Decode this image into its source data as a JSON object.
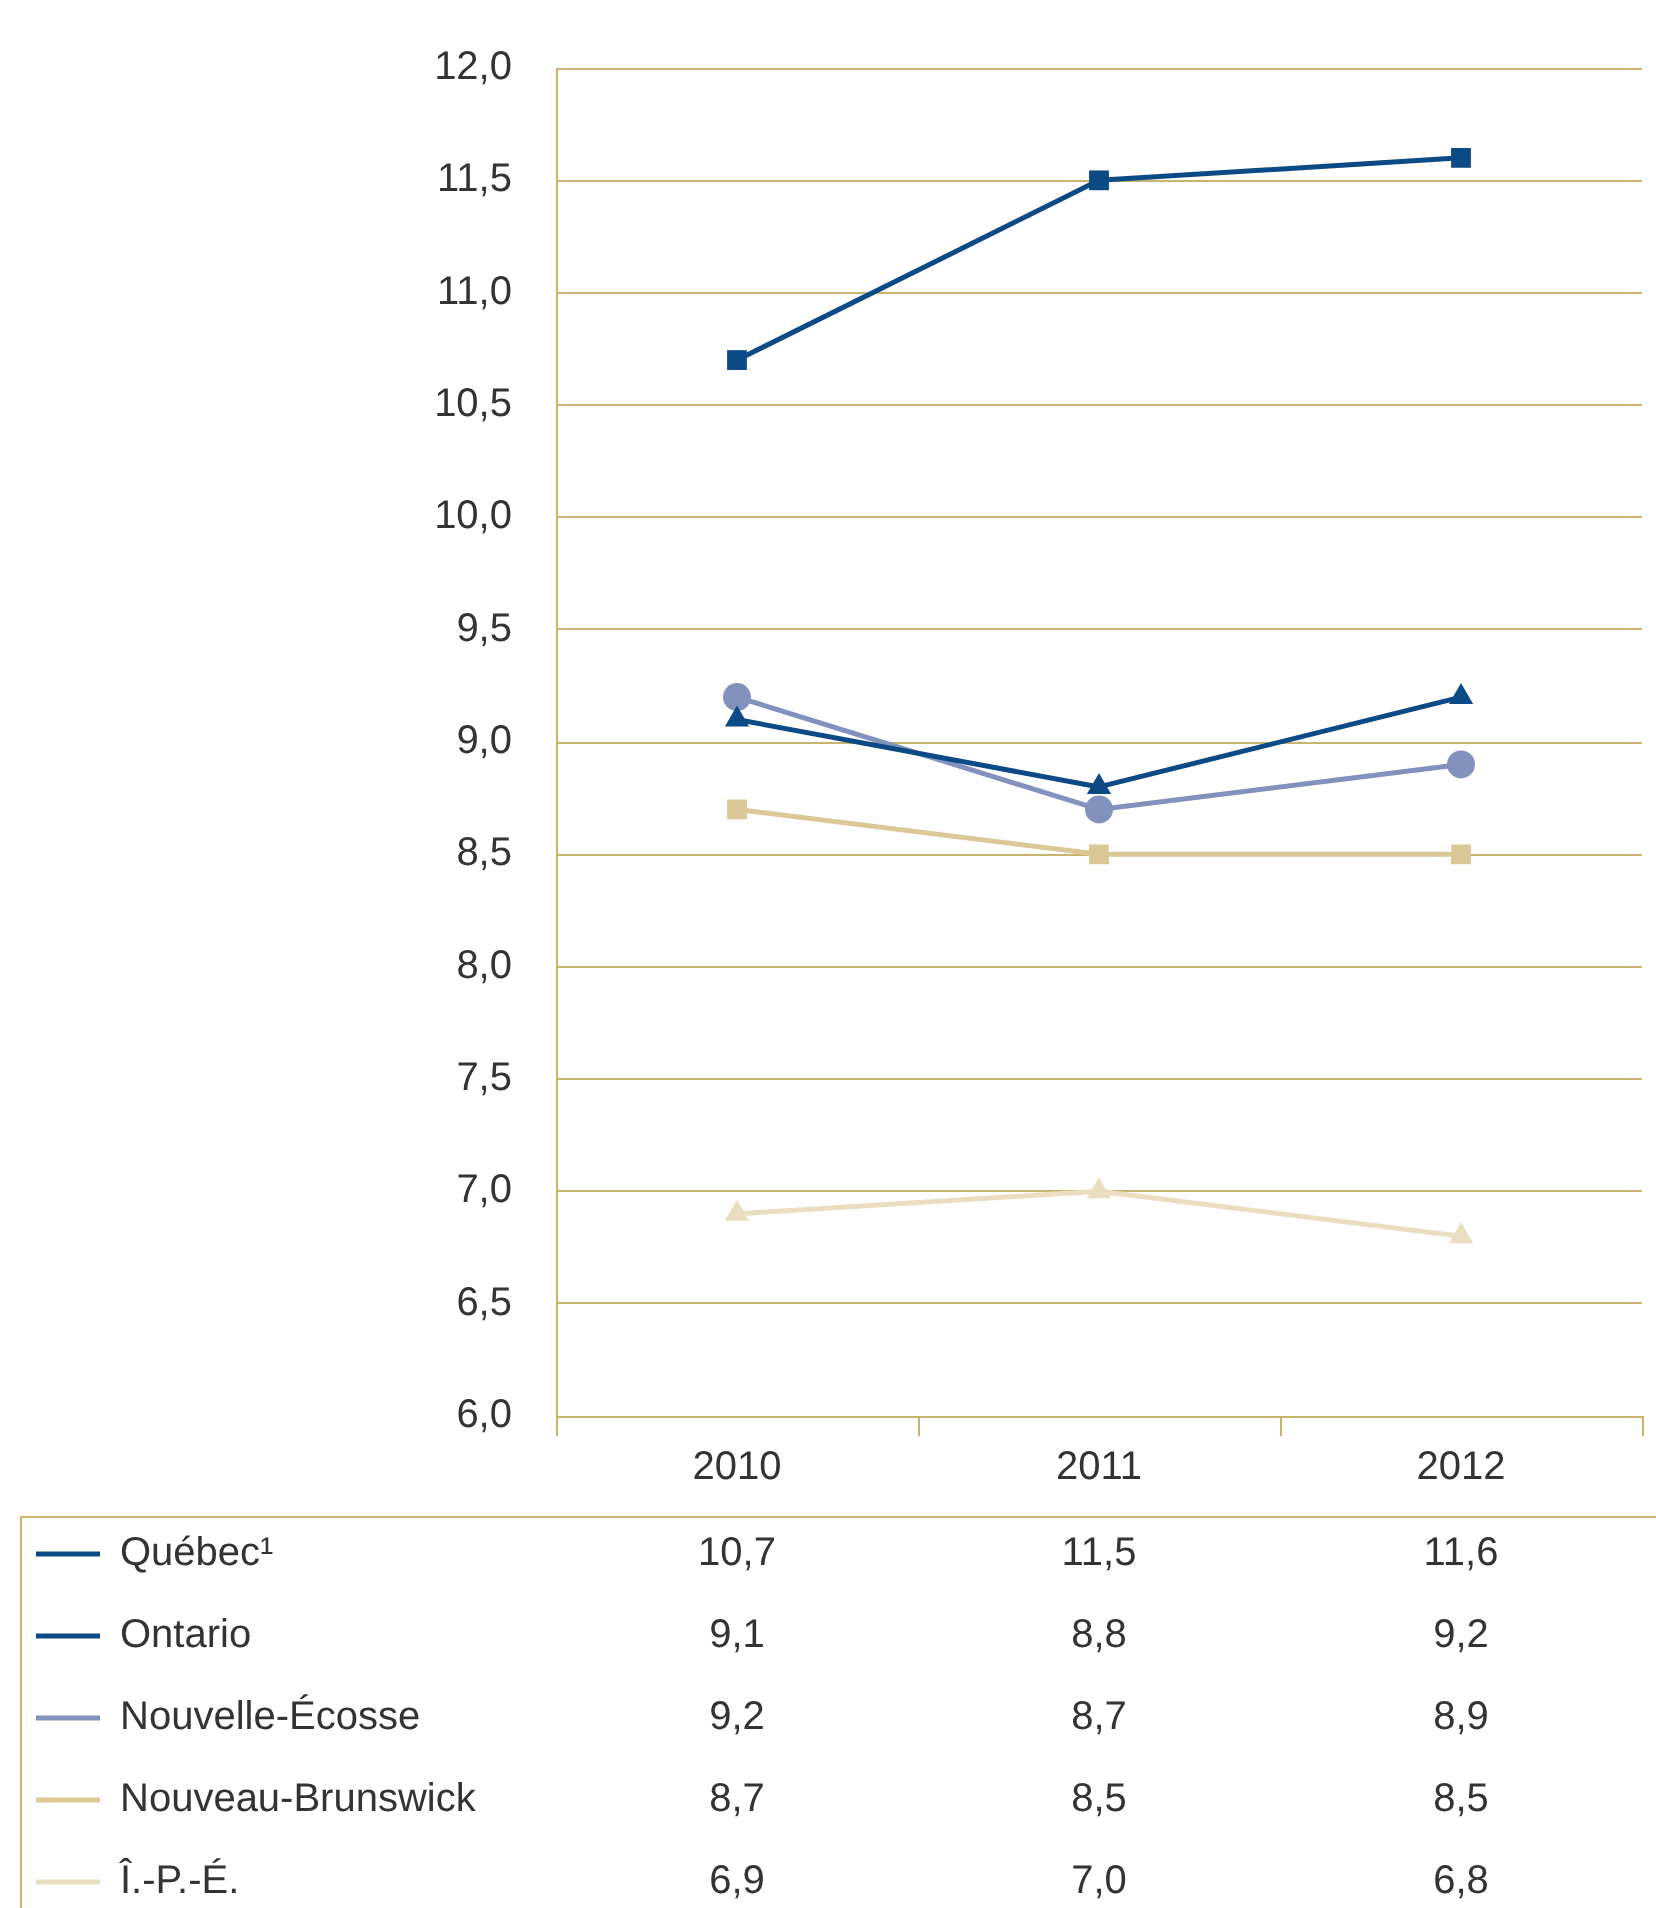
{
  "chart_data": {
    "type": "line",
    "categories": [
      "2010",
      "2011",
      "2012"
    ],
    "series": [
      {
        "name": "Québec¹",
        "color": "#0b4a85",
        "marker": "square",
        "values": [
          10.7,
          11.5,
          11.6
        ],
        "value_labels": [
          "10,7",
          "11,5",
          "11,6"
        ]
      },
      {
        "name": "Ontario",
        "color": "#0b4a85",
        "marker": "triangle",
        "values": [
          9.1,
          8.8,
          9.2
        ],
        "value_labels": [
          "9,1",
          "8,8",
          "9,2"
        ]
      },
      {
        "name": "Nouvelle-Écosse",
        "color": "#8291be",
        "marker": "circle",
        "values": [
          9.2,
          8.7,
          8.9
        ],
        "value_labels": [
          "9,2",
          "8,7",
          "8,9"
        ]
      },
      {
        "name": "Nouveau-Brunswick",
        "color": "#dcc896",
        "marker": "square",
        "values": [
          8.7,
          8.5,
          8.5
        ],
        "value_labels": [
          "8,7",
          "8,5",
          "8,5"
        ]
      },
      {
        "name": "Î.-P.-É.",
        "color": "#e9dfc0",
        "marker": "triangle",
        "values": [
          6.9,
          7.0,
          6.8
        ],
        "value_labels": [
          "6,9",
          "7,0",
          "6,8"
        ]
      }
    ],
    "ylim": [
      6,
      12
    ],
    "yticks": [
      {
        "value": 6,
        "label": "6,0"
      },
      {
        "value": 6.5,
        "label": "6,5"
      },
      {
        "value": 7,
        "label": "7,0"
      },
      {
        "value": 7.5,
        "label": "7,5"
      },
      {
        "value": 8,
        "label": "8,0"
      },
      {
        "value": 8.5,
        "label": "8,5"
      },
      {
        "value": 9,
        "label": "9,0"
      },
      {
        "value": 9.5,
        "label": "9,5"
      },
      {
        "value": 10,
        "label": "10,0"
      },
      {
        "value": 10.5,
        "label": "10,5"
      },
      {
        "value": 11,
        "label": "11,0"
      },
      {
        "value": 11.5,
        "label": "11,5"
      },
      {
        "value": 12,
        "label": "12,0"
      }
    ],
    "grid": "y",
    "legend": "bottom",
    "line_style": "solid"
  }
}
